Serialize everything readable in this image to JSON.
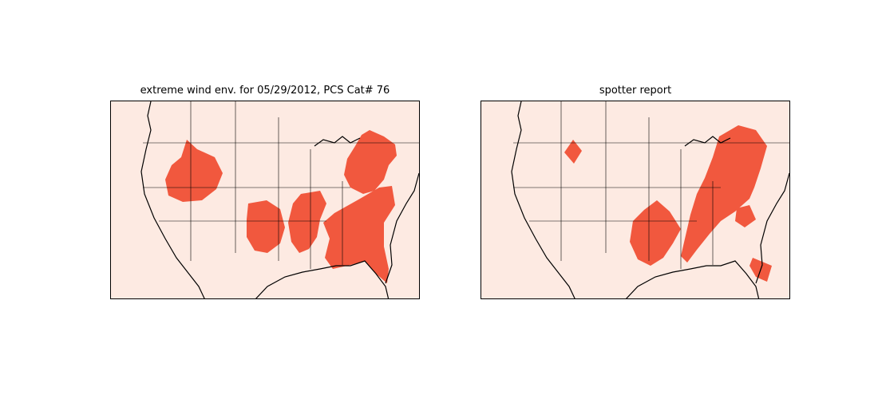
{
  "panels": [
    {
      "title": "extreme wind env. for 05/29/2012, PCS Cat# 76",
      "shade_color": "#f1583e",
      "background_color": "#fdeae2"
    },
    {
      "title": "spotter report",
      "shade_color": "#f1583e",
      "background_color": "#fdeae2"
    }
  ]
}
